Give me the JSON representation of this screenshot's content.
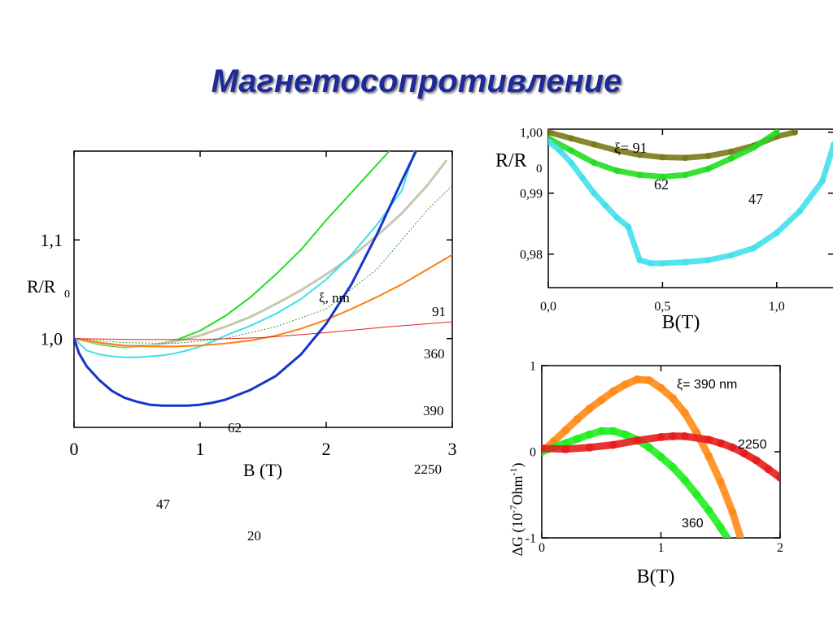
{
  "title": "Магнетосопротивление",
  "chart_data": [
    {
      "type": "line",
      "xlabel": "B (T)",
      "ylabel": "R/R",
      "ylabel_sub": "0",
      "xlim": [
        0,
        3
      ],
      "ylim": [
        0.91,
        1.19
      ],
      "x_ticks": [
        0,
        1,
        2,
        3
      ],
      "x_tick_labels": [
        "0",
        "1",
        "2",
        "3"
      ],
      "y_ticks": [
        1.0,
        1.1
      ],
      "y_tick_labels": [
        "1,0",
        "1,1"
      ],
      "legend_title": "ξ, nm",
      "grid": false,
      "series": [
        {
          "name": "62",
          "color": "#22dd22",
          "width": 2,
          "x": [
            0,
            0.2,
            0.4,
            0.6,
            0.8,
            1.0,
            1.2,
            1.4,
            1.6,
            1.8,
            2.0,
            2.2,
            2.4,
            2.5,
            2.6
          ],
          "y": [
            1.0,
            0.994,
            0.991,
            0.993,
            0.998,
            1.008,
            1.023,
            1.042,
            1.065,
            1.09,
            1.12,
            1.148,
            1.176,
            1.19,
            1.205
          ]
        },
        {
          "name": "91",
          "color": "#c8c8b0",
          "width": 3,
          "x": [
            0,
            0.2,
            0.4,
            0.6,
            0.8,
            1.0,
            1.2,
            1.4,
            1.6,
            1.8,
            2.0,
            2.2,
            2.4,
            2.6,
            2.8,
            2.95
          ],
          "y": [
            1.0,
            0.995,
            0.992,
            0.993,
            0.997,
            1.003,
            1.012,
            1.022,
            1.035,
            1.049,
            1.065,
            1.083,
            1.104,
            1.127,
            1.155,
            1.18
          ]
        },
        {
          "name": "47",
          "color": "#3ce0e8",
          "width": 2,
          "x": [
            0,
            0.1,
            0.2,
            0.3,
            0.4,
            0.5,
            0.6,
            0.7,
            0.8,
            0.9,
            1.0,
            1.1,
            1.2,
            1.4,
            1.6,
            1.8,
            2.0,
            2.2,
            2.4,
            2.6,
            2.7
          ],
          "y": [
            1.0,
            0.988,
            0.984,
            0.982,
            0.981,
            0.981,
            0.982,
            0.983,
            0.985,
            0.988,
            0.992,
            0.997,
            1.003,
            1.013,
            1.025,
            1.04,
            1.06,
            1.085,
            1.115,
            1.15,
            1.19
          ]
        },
        {
          "name": "360",
          "color": "#2a8a2a",
          "width": 1,
          "dash": "1,3",
          "x": [
            0,
            0.4,
            0.8,
            1.2,
            1.6,
            2.0,
            2.4,
            2.8,
            3.0
          ],
          "y": [
            1.0,
            0.996,
            0.995,
            1.0,
            1.012,
            1.03,
            1.07,
            1.13,
            1.155
          ]
        },
        {
          "name": "390",
          "color": "#ff7f0e",
          "width": 2,
          "x": [
            0,
            0.2,
            0.4,
            0.6,
            0.8,
            1.0,
            1.2,
            1.4,
            1.6,
            1.8,
            2.0,
            2.2,
            2.4,
            2.6,
            2.8,
            3.0
          ],
          "y": [
            1.0,
            0.996,
            0.993,
            0.992,
            0.992,
            0.993,
            0.995,
            0.998,
            1.003,
            1.01,
            1.019,
            1.03,
            1.042,
            1.055,
            1.07,
            1.085
          ]
        },
        {
          "name": "2250",
          "color": "#e02020",
          "width": 1,
          "x": [
            0,
            0.5,
            1.0,
            1.5,
            2.0,
            2.5,
            3.0
          ],
          "y": [
            1.0,
            0.999,
            0.999,
            1.001,
            1.006,
            1.012,
            1.017
          ]
        },
        {
          "name": "20",
          "color": "#1535c8",
          "width": 3,
          "x": [
            0,
            0.04,
            0.1,
            0.2,
            0.3,
            0.4,
            0.5,
            0.6,
            0.7,
            0.8,
            0.9,
            1.0,
            1.1,
            1.2,
            1.4,
            1.6,
            1.8,
            2.0,
            2.2,
            2.4,
            2.6,
            2.75
          ],
          "y": [
            1.0,
            0.985,
            0.972,
            0.958,
            0.947,
            0.94,
            0.936,
            0.933,
            0.932,
            0.932,
            0.932,
            0.933,
            0.935,
            0.938,
            0.948,
            0.962,
            0.984,
            1.015,
            1.055,
            1.105,
            1.16,
            1.2
          ]
        }
      ],
      "annotations": [
        "62",
        "91",
        "360",
        "390",
        "2250",
        "47",
        "20"
      ]
    },
    {
      "type": "scatter",
      "xlabel": "B(T)",
      "ylabel": "R/R",
      "ylabel_sub": "0",
      "xlim": [
        0,
        1.25
      ],
      "ylim": [
        0.9745,
        1.0005
      ],
      "x_ticks": [
        0,
        0.5,
        1.0
      ],
      "x_tick_labels": [
        "0,0",
        "0,5",
        "1,0"
      ],
      "y_ticks": [
        0.98,
        0.99,
        1.0
      ],
      "y_tick_labels": [
        "0,98",
        "0,99",
        "1,00"
      ],
      "grid": false,
      "series": [
        {
          "name": "ξ= 91",
          "color": "#7a7a1a",
          "x": [
            0,
            0.1,
            0.2,
            0.3,
            0.4,
            0.5,
            0.6,
            0.7,
            0.8,
            0.9,
            1.0,
            1.08
          ],
          "y": [
            1.0,
            0.999,
            0.998,
            0.997,
            0.9963,
            0.9959,
            0.9958,
            0.9961,
            0.9968,
            0.9978,
            0.9993,
            1.0
          ]
        },
        {
          "name": "62",
          "color": "#22dd22",
          "x": [
            0,
            0.1,
            0.2,
            0.3,
            0.4,
            0.5,
            0.6,
            0.7,
            0.8,
            0.9,
            1.0
          ],
          "y": [
            0.999,
            0.997,
            0.995,
            0.9937,
            0.993,
            0.9927,
            0.993,
            0.994,
            0.9957,
            0.9975,
            1.0
          ]
        },
        {
          "name": "47",
          "color": "#44e0ec",
          "x": [
            0,
            0.05,
            0.1,
            0.15,
            0.2,
            0.25,
            0.3,
            0.35,
            0.4,
            0.45,
            0.5,
            0.6,
            0.7,
            0.8,
            0.9,
            1.0,
            1.1,
            1.2,
            1.25
          ],
          "y": [
            0.9985,
            0.997,
            0.995,
            0.9925,
            0.99,
            0.988,
            0.986,
            0.9845,
            0.979,
            0.9785,
            0.9785,
            0.9787,
            0.979,
            0.9798,
            0.981,
            0.9835,
            0.987,
            0.992,
            0.998
          ]
        }
      ],
      "annotations": [
        "ξ= 91",
        "62",
        "47"
      ]
    },
    {
      "type": "scatter",
      "xlabel": "B(T)",
      "ylabel": "ΔG (10",
      "ylabel_sup": "-7",
      "ylabel_rest": "Ohm",
      "ylabel_sup2": "-1",
      "ylabel_end": ")",
      "xlim": [
        0,
        2
      ],
      "ylim": [
        -1,
        1
      ],
      "x_ticks": [
        0,
        1,
        2
      ],
      "x_tick_labels": [
        "0",
        "1",
        "2"
      ],
      "y_ticks": [
        -1,
        0,
        1
      ],
      "y_tick_labels": [
        "-1",
        "0",
        "1"
      ],
      "grid": false,
      "series": [
        {
          "name": "ξ= 390 nm",
          "color": "#ff8c1a",
          "x": [
            0,
            0.1,
            0.2,
            0.3,
            0.4,
            0.5,
            0.6,
            0.7,
            0.8,
            0.9,
            1.0,
            1.1,
            1.2,
            1.3,
            1.4,
            1.5,
            1.6,
            1.68
          ],
          "y": [
            0.0,
            0.12,
            0.25,
            0.38,
            0.5,
            0.6,
            0.7,
            0.78,
            0.84,
            0.83,
            0.74,
            0.62,
            0.45,
            0.22,
            -0.05,
            -0.35,
            -0.7,
            -1.05
          ]
        },
        {
          "name": "360",
          "color": "#22ee22",
          "x": [
            0,
            0.1,
            0.2,
            0.3,
            0.4,
            0.5,
            0.6,
            0.7,
            0.8,
            0.9,
            1.0,
            1.1,
            1.2,
            1.3,
            1.4,
            1.5,
            1.58
          ],
          "y": [
            0.0,
            0.05,
            0.1,
            0.15,
            0.2,
            0.24,
            0.24,
            0.2,
            0.14,
            0.05,
            -0.06,
            -0.18,
            -0.33,
            -0.5,
            -0.68,
            -0.88,
            -1.05
          ]
        },
        {
          "name": "2250",
          "color": "#e61e1e",
          "x": [
            0,
            0.2,
            0.4,
            0.6,
            0.8,
            1.0,
            1.1,
            1.2,
            1.4,
            1.5,
            1.6,
            1.7,
            1.8,
            1.9,
            2.0
          ],
          "y": [
            0.04,
            0.03,
            0.05,
            0.08,
            0.13,
            0.17,
            0.18,
            0.18,
            0.14,
            0.1,
            0.05,
            -0.02,
            -0.1,
            -0.2,
            -0.3
          ]
        }
      ],
      "annotations": [
        "ξ= 390 nm",
        "2250",
        "360"
      ]
    }
  ]
}
